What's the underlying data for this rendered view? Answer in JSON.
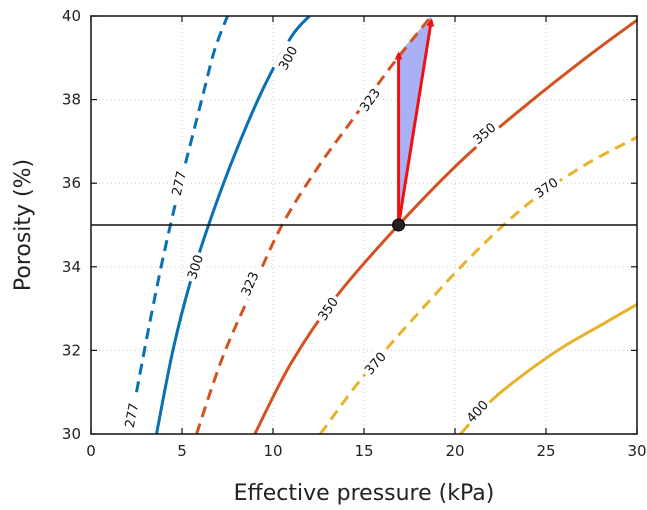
{
  "chart_data": {
    "type": "line",
    "xlabel": "Effective pressure (kPa)",
    "ylabel": "Porosity (%)",
    "xlim": [
      0,
      30
    ],
    "ylim": [
      30,
      40
    ],
    "xticks": [
      0,
      5,
      10,
      15,
      20,
      25,
      30
    ],
    "yticks": [
      30,
      32,
      34,
      36,
      38,
      40
    ],
    "grid": true,
    "colors": {
      "blue": "#0a70b4",
      "orange": "#d35220",
      "yellow": "#e9b22b",
      "arrow": "#ee1111",
      "fill": "#aab0f5"
    },
    "series": [
      {
        "label": "277",
        "style": "dashed",
        "color": "#0a70b4",
        "x": [
          2.5,
          3.2,
          4.0,
          4.8,
          5.5,
          6.2,
          6.8,
          7.5
        ],
        "y": [
          31.0,
          32.6,
          34.3,
          35.8,
          37.0,
          38.2,
          39.2,
          40.0
        ],
        "labels_at": [
          [
            2.2,
            30.45
          ],
          [
            4.8,
            36.0
          ]
        ]
      },
      {
        "label": "300",
        "style": "solid",
        "color": "#0a70b4",
        "x": [
          3.6,
          4.5,
          5.5,
          6.7,
          8.0,
          9.5,
          11.0,
          12.0
        ],
        "y": [
          30.0,
          32.0,
          33.7,
          35.3,
          36.8,
          38.3,
          39.5,
          40.0
        ],
        "labels_at": [
          [
            5.7,
            34.0
          ],
          [
            10.8,
            39.0
          ]
        ]
      },
      {
        "label": "323",
        "style": "dashed",
        "color": "#d35220",
        "x": [
          5.8,
          7.2,
          8.8,
          10.5,
          12.5,
          14.5,
          16.5,
          18.7
        ],
        "y": [
          30.0,
          31.8,
          33.4,
          35.0,
          36.4,
          37.6,
          38.8,
          40.0
        ],
        "labels_at": [
          [
            8.7,
            33.6
          ],
          [
            15.3,
            38.0
          ]
        ]
      },
      {
        "label": "350",
        "style": "solid",
        "color": "#d35220",
        "x": [
          9.0,
          11.0,
          13.5,
          16.9,
          20.5,
          24.0,
          27.5,
          30.0
        ],
        "y": [
          30.0,
          31.7,
          33.3,
          35.0,
          36.6,
          37.9,
          39.1,
          39.9
        ],
        "labels_at": [
          [
            13.0,
            33.0
          ],
          [
            21.6,
            37.2
          ]
        ]
      },
      {
        "label": "370",
        "style": "dashed",
        "color": "#e9b22b",
        "x": [
          12.6,
          15.0,
          18.0,
          21.0,
          24.0,
          27.0,
          30.0
        ],
        "y": [
          30.0,
          31.4,
          32.9,
          34.3,
          35.5,
          36.4,
          37.1
        ],
        "labels_at": [
          [
            15.6,
            31.7
          ],
          [
            25.0,
            35.9
          ]
        ]
      },
      {
        "label": "400",
        "style": "solid",
        "color": "#e9b22b",
        "x": [
          20.3,
          22.0,
          24.0,
          26.0,
          28.0,
          30.0
        ],
        "y": [
          30.0,
          30.8,
          31.5,
          32.1,
          32.6,
          33.1
        ],
        "labels_at": [
          [
            21.2,
            30.55
          ]
        ]
      }
    ],
    "reference_line": {
      "y": 35.0
    },
    "point": {
      "x": 16.9,
      "y": 35.0
    },
    "arrows": [
      {
        "from": [
          16.9,
          35.0
        ],
        "to": [
          16.9,
          39.1
        ]
      },
      {
        "from": [
          16.9,
          35.0
        ],
        "to": [
          18.7,
          39.9
        ]
      }
    ],
    "shaded_region": [
      [
        16.9,
        35.0
      ],
      [
        16.9,
        39.1
      ],
      [
        18.7,
        40.0
      ]
    ]
  }
}
